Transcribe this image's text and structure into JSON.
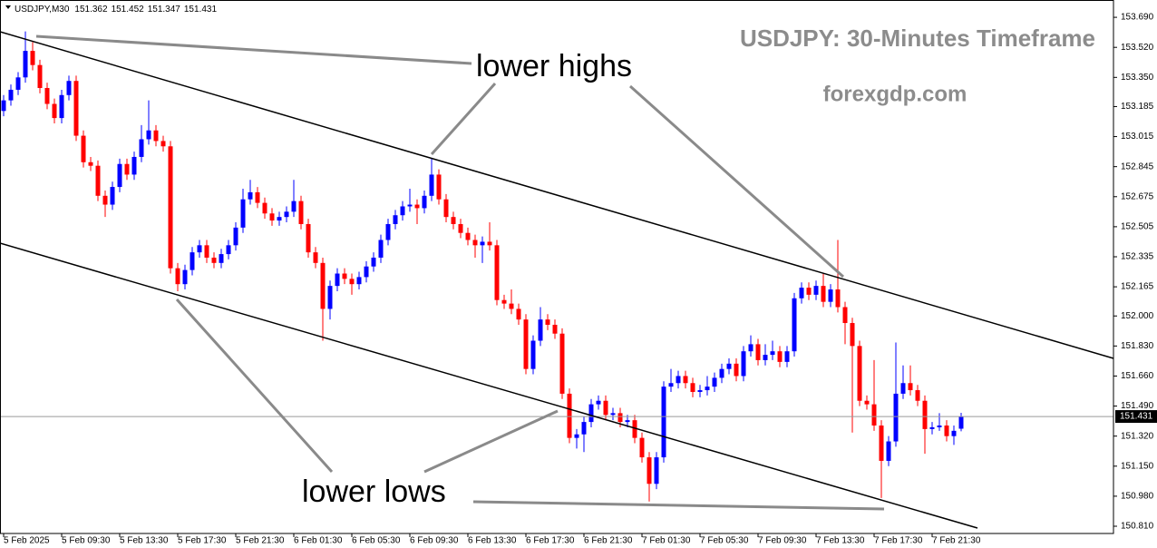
{
  "chart_data": {
    "type": "candlestick",
    "title": "USDJPY: 30-Minutes Timeframe",
    "subtitle": "forexgdp.com",
    "symbol": "USDJPY,M30",
    "annotations": [
      "lower highs",
      "lower lows"
    ],
    "categories": [
      "5 Feb 2025",
      null,
      null,
      null,
      null,
      null,
      null,
      null,
      "5 Feb 09:30",
      null,
      null,
      null,
      null,
      null,
      null,
      null,
      "5 Feb 13:30",
      null,
      null,
      null,
      null,
      null,
      null,
      null,
      "5 Feb 17:30",
      null,
      null,
      null,
      null,
      null,
      null,
      null,
      "5 Feb 21:30",
      null,
      null,
      null,
      null,
      null,
      null,
      null,
      "6 Feb 01:30",
      null,
      null,
      null,
      null,
      null,
      null,
      null,
      "6 Feb 05:30",
      null,
      null,
      null,
      null,
      null,
      null,
      null,
      "6 Feb 09:30",
      null,
      null,
      null,
      null,
      null,
      null,
      null,
      "6 Feb 13:30",
      null,
      null,
      null,
      null,
      null,
      null,
      null,
      "6 Feb 17:30",
      null,
      null,
      null,
      null,
      null,
      null,
      null,
      "6 Feb 21:30",
      null,
      null,
      null,
      null,
      null,
      null,
      null,
      "7 Feb 01:30",
      null,
      null,
      null,
      null,
      null,
      null,
      null,
      "7 Feb 05:30",
      null,
      null,
      null,
      null,
      null,
      null,
      null,
      "7 Feb 09:30",
      null,
      null,
      null,
      null,
      null,
      null,
      null,
      "7 Feb 13:30",
      null,
      null,
      null,
      null,
      null,
      null,
      null,
      "7 Feb 17:30",
      null,
      null,
      null,
      null,
      null,
      null,
      null,
      "7 Feb 21:30",
      null,
      null,
      null,
      null
    ],
    "open": [
      153.16,
      153.22,
      153.28,
      153.35,
      153.5,
      153.42,
      153.29,
      153.2,
      153.12,
      153.25,
      153.33,
      153.02,
      152.87,
      152.85,
      152.68,
      152.63,
      152.73,
      152.86,
      152.8,
      152.9,
      153.0,
      153.05,
      152.99,
      152.96,
      152.27,
      152.18,
      152.26,
      152.36,
      152.4,
      152.33,
      152.3,
      152.35,
      152.4,
      152.5,
      152.66,
      152.7,
      152.64,
      152.58,
      152.54,
      152.56,
      152.59,
      152.65,
      152.52,
      152.36,
      152.3,
      152.04,
      152.17,
      152.24,
      152.21,
      152.18,
      152.22,
      152.28,
      152.33,
      152.43,
      152.52,
      152.57,
      152.62,
      152.63,
      152.61,
      152.68,
      152.8,
      152.66,
      152.56,
      152.52,
      152.47,
      152.43,
      152.4,
      152.42,
      152.4,
      152.09,
      152.07,
      152.04,
      151.98,
      151.7,
      151.86,
      151.98,
      151.95,
      151.9,
      151.56,
      151.31,
      151.33,
      151.4,
      151.5,
      151.52,
      151.44,
      151.45,
      151.4,
      151.41,
      151.31,
      151.2,
      151.05,
      151.2,
      151.6,
      151.62,
      151.66,
      151.62,
      151.57,
      151.58,
      151.6,
      151.65,
      151.7,
      151.73,
      151.66,
      151.8,
      151.84,
      151.75,
      151.78,
      151.8,
      151.74,
      151.8,
      152.1,
      152.16,
      152.12,
      152.17,
      152.08,
      152.15,
      152.05,
      151.96,
      151.83,
      151.52,
      151.5,
      151.38,
      151.18,
      151.29,
      151.56,
      151.62,
      151.58,
      151.52,
      151.36,
      151.37,
      151.38,
      151.32,
      151.362
    ],
    "high": [
      153.25,
      153.31,
      153.38,
      153.61,
      153.55,
      153.45,
      153.32,
      153.23,
      153.28,
      153.36,
      153.36,
      153.05,
      152.9,
      152.88,
      152.71,
      152.76,
      152.89,
      152.89,
      152.93,
      153.08,
      153.22,
      153.08,
      153.02,
      152.99,
      152.3,
      152.29,
      152.39,
      152.43,
      152.43,
      152.36,
      152.38,
      152.43,
      152.53,
      152.72,
      152.77,
      152.73,
      152.67,
      152.61,
      152.59,
      152.62,
      152.77,
      152.68,
      152.55,
      152.39,
      152.33,
      152.2,
      152.27,
      152.27,
      152.24,
      152.25,
      152.31,
      152.36,
      152.46,
      152.55,
      152.6,
      152.65,
      152.72,
      152.66,
      152.71,
      152.89,
      152.83,
      152.69,
      152.59,
      152.55,
      152.5,
      152.46,
      152.45,
      152.53,
      152.43,
      152.12,
      152.15,
      152.07,
      152.01,
      151.89,
      152.05,
      152.01,
      151.98,
      151.93,
      151.59,
      151.36,
      151.43,
      151.53,
      151.55,
      151.55,
      151.48,
      151.48,
      151.44,
      151.44,
      151.34,
      151.23,
      151.23,
      151.63,
      151.7,
      151.69,
      151.69,
      151.65,
      151.61,
      151.66,
      151.68,
      151.73,
      151.76,
      151.76,
      151.83,
      151.89,
      151.87,
      151.84,
      151.86,
      151.83,
      151.83,
      152.13,
      152.19,
      152.19,
      152.2,
      152.24,
      152.18,
      152.43,
      152.08,
      151.99,
      151.86,
      151.55,
      151.75,
      151.41,
      151.32,
      151.85,
      151.72,
      151.72,
      151.61,
      151.55,
      151.4,
      151.45,
      151.41,
      151.38,
      151.452
    ],
    "low": [
      153.13,
      153.19,
      153.25,
      153.32,
      153.39,
      153.26,
      153.17,
      153.09,
      153.09,
      153.22,
      152.99,
      152.84,
      152.82,
      152.65,
      152.56,
      152.6,
      152.7,
      152.77,
      152.77,
      152.87,
      152.97,
      152.96,
      152.93,
      152.24,
      152.14,
      152.15,
      152.23,
      152.33,
      152.3,
      152.27,
      152.27,
      152.32,
      152.37,
      152.47,
      152.63,
      152.61,
      152.55,
      152.51,
      152.51,
      152.53,
      152.56,
      152.49,
      152.33,
      152.27,
      151.86,
      151.98,
      152.14,
      152.18,
      152.12,
      152.15,
      152.19,
      152.25,
      152.3,
      152.4,
      152.49,
      152.54,
      152.59,
      152.52,
      152.58,
      152.65,
      152.63,
      152.53,
      152.49,
      152.44,
      152.4,
      152.33,
      152.3,
      152.37,
      152.06,
      152.04,
      152.01,
      151.95,
      151.67,
      151.67,
      151.83,
      151.92,
      151.87,
      151.53,
      151.28,
      151.25,
      151.23,
      151.37,
      151.47,
      151.41,
      151.41,
      151.37,
      151.37,
      151.28,
      151.17,
      150.95,
      151.02,
      151.17,
      151.57,
      151.59,
      151.59,
      151.54,
      151.54,
      151.55,
      151.57,
      151.62,
      151.67,
      151.63,
      151.63,
      151.77,
      151.72,
      151.72,
      151.75,
      151.71,
      151.71,
      151.77,
      152.07,
      152.09,
      152.09,
      152.05,
      152.05,
      152.02,
      151.84,
      151.34,
      151.49,
      151.47,
      151.35,
      150.97,
      151.15,
      151.26,
      151.53,
      151.55,
      151.49,
      151.22,
      151.33,
      151.35,
      151.29,
      151.27,
      151.347
    ],
    "close": [
      153.22,
      153.28,
      153.35,
      153.5,
      153.42,
      153.29,
      153.2,
      153.12,
      153.25,
      153.33,
      153.02,
      152.87,
      152.85,
      152.68,
      152.63,
      152.73,
      152.86,
      152.8,
      152.9,
      153.0,
      153.05,
      152.99,
      152.96,
      152.27,
      152.18,
      152.26,
      152.36,
      152.4,
      152.33,
      152.3,
      152.35,
      152.4,
      152.5,
      152.66,
      152.7,
      152.64,
      152.58,
      152.54,
      152.56,
      152.59,
      152.65,
      152.52,
      152.36,
      152.3,
      152.04,
      152.17,
      152.24,
      152.21,
      152.18,
      152.22,
      152.28,
      152.33,
      152.43,
      152.52,
      152.57,
      152.62,
      152.63,
      152.61,
      152.68,
      152.8,
      152.66,
      152.56,
      152.52,
      152.47,
      152.43,
      152.4,
      152.42,
      152.4,
      152.09,
      152.07,
      152.04,
      151.98,
      151.7,
      151.86,
      151.98,
      151.95,
      151.9,
      151.56,
      151.31,
      151.33,
      151.4,
      151.5,
      151.52,
      151.44,
      151.45,
      151.4,
      151.41,
      151.31,
      151.2,
      151.05,
      151.2,
      151.6,
      151.62,
      151.66,
      151.62,
      151.57,
      151.58,
      151.6,
      151.65,
      151.7,
      151.73,
      151.66,
      151.8,
      151.84,
      151.75,
      151.78,
      151.8,
      151.74,
      151.8,
      152.1,
      152.16,
      152.12,
      152.17,
      152.08,
      152.15,
      152.05,
      151.96,
      151.83,
      151.52,
      151.5,
      151.38,
      151.18,
      151.29,
      151.56,
      151.62,
      151.58,
      151.52,
      151.36,
      151.37,
      151.38,
      151.32,
      151.35,
      151.431
    ],
    "up_color": "#0000ff",
    "down_color": "#ff0000",
    "ylim": [
      150.769,
      153.788
    ],
    "yticks": [
      {
        "value": 153.69,
        "label": "153.690"
      },
      {
        "value": 153.52,
        "label": "153.520"
      },
      {
        "value": 153.35,
        "label": "153.350"
      },
      153.185,
      153.015,
      152.845,
      152.675,
      152.505,
      152.335,
      152.165,
      {
        "value": 152.0,
        "label": "152.000"
      },
      {
        "value": 151.83,
        "label": "151.830"
      },
      {
        "value": 151.66,
        "label": "151.660"
      },
      {
        "value": 151.49,
        "label": "151.490"
      },
      {
        "value": 151.32,
        "label": "151.320"
      },
      {
        "value": 151.15,
        "label": "151.150"
      },
      {
        "value": 150.98,
        "label": "150.980"
      },
      {
        "value": 150.81,
        "label": "150.810"
      }
    ],
    "price_line": true
  }
}
